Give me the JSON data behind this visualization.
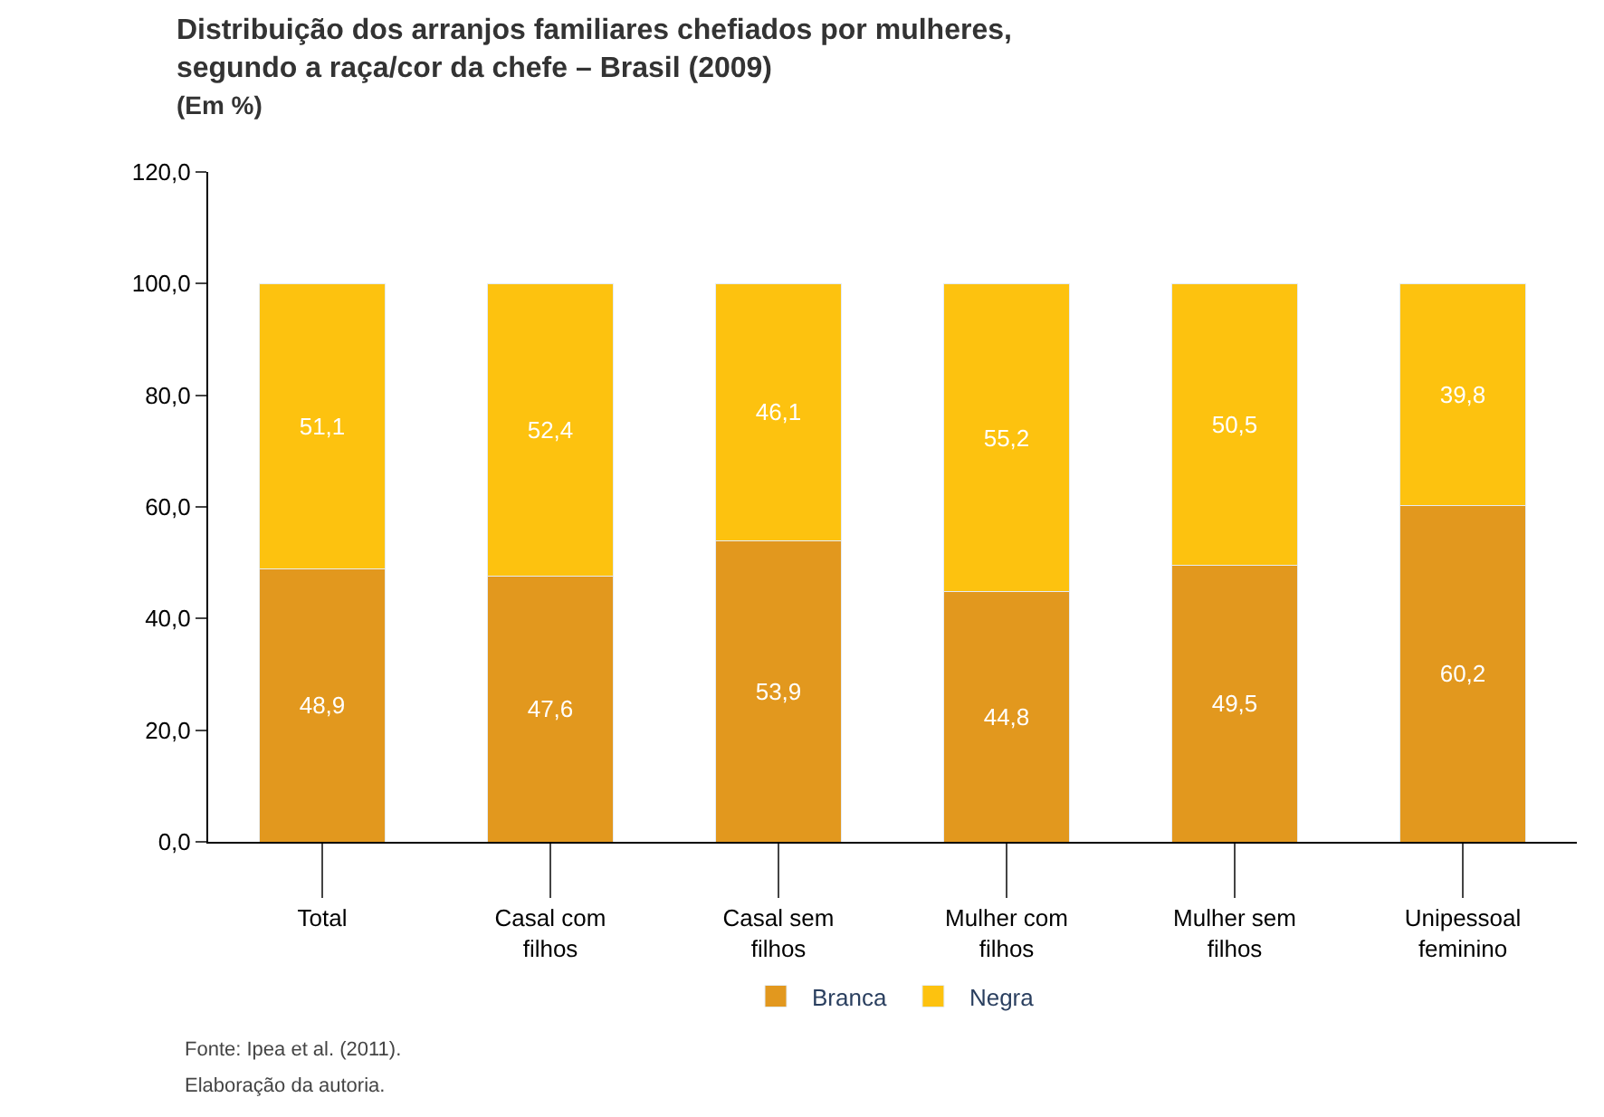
{
  "chart_data": {
    "type": "bar",
    "stacked": true,
    "title": "Distribuição dos arranjos familiares chefiados por mulheres,\nsegundo a raça/cor da chefe – Brasil (2009)",
    "subtitle": "(Em %)",
    "categories": [
      "Total",
      "Casal com filhos",
      "Casal sem filhos",
      "Mulher com filhos",
      "Mulher sem filhos",
      "Unipessoal feminino"
    ],
    "series": [
      {
        "name": "Branca",
        "color": "#e2981e",
        "values": [
          48.9,
          47.6,
          53.9,
          44.8,
          49.5,
          60.2
        ],
        "value_labels": [
          "48,9",
          "47,6",
          "53,9",
          "44,8",
          "49,5",
          "60,2"
        ]
      },
      {
        "name": "Negra",
        "color": "#fdc20f",
        "values": [
          51.1,
          52.4,
          46.1,
          55.2,
          50.5,
          39.8
        ],
        "value_labels": [
          "51,1",
          "52,4",
          "46,1",
          "55,2",
          "50,5",
          "39,8"
        ]
      }
    ],
    "ylim": [
      0,
      120
    ],
    "yticks": [
      {
        "value": 0,
        "label": "0,0"
      },
      {
        "value": 20,
        "label": "20,0"
      },
      {
        "value": 40,
        "label": "40,0"
      },
      {
        "value": 60,
        "label": "60,0"
      },
      {
        "value": 80,
        "label": "80,0"
      },
      {
        "value": 100,
        "label": "100,0"
      },
      {
        "value": 120,
        "label": "120,0"
      }
    ],
    "legend": "bottom",
    "annotations": [
      "Fonte: Ipea et al. (2011).",
      "Elaboração da autoria."
    ]
  }
}
